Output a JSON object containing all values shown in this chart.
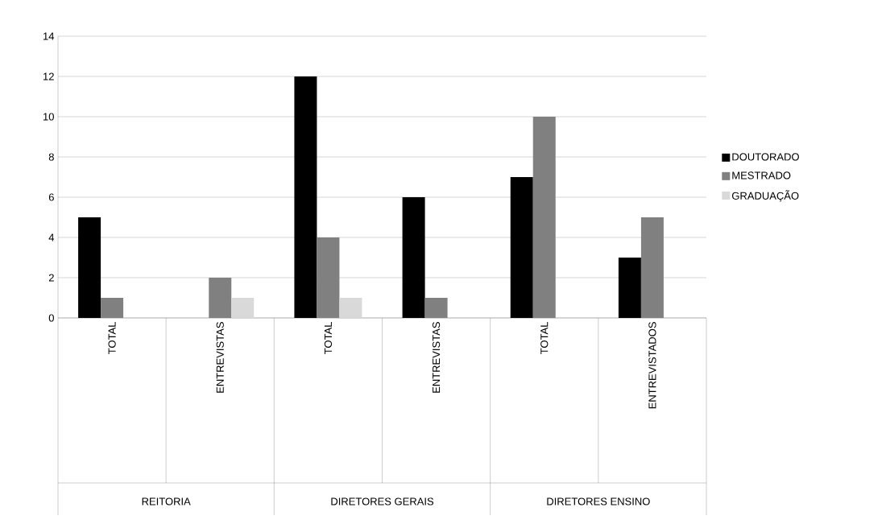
{
  "chart_data": {
    "type": "bar",
    "categories": [
      "TOTAL",
      "ENTREVISTAS",
      "TOTAL",
      "ENTREVISTAS",
      "TOTAL",
      "ENTREVISTADOS"
    ],
    "series": [
      {
        "name": "DOUTORADO",
        "color": "#000000",
        "values": [
          5,
          0,
          12,
          6,
          7,
          3
        ]
      },
      {
        "name": "MESTRADO",
        "color": "#808080",
        "values": [
          1,
          2,
          4,
          1,
          10,
          5
        ]
      },
      {
        "name": "GRADUAÇÃO",
        "color": "#d9d9d9",
        "values": [
          0,
          1,
          1,
          0,
          0,
          0
        ]
      }
    ],
    "ylim": [
      0,
      14
    ],
    "yticks": [
      0,
      2,
      4,
      6,
      8,
      10,
      12,
      14
    ],
    "grid": "y",
    "legend": "right",
    "annotations": [
      "REITORIA",
      "DIRETORES GERAIS",
      "DIRETORES ENSINO"
    ]
  }
}
